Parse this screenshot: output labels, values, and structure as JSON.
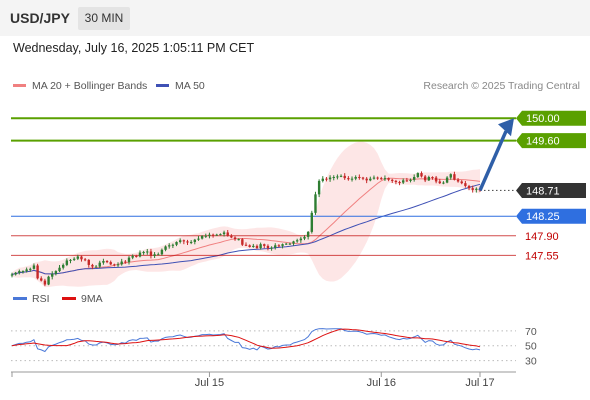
{
  "header": {
    "symbol": "USD/JPY",
    "timeframe": "30 MIN"
  },
  "datetime": "Wednesday, July 16, 2025 1:05:11 PM CET",
  "legend": {
    "ma20_label": "MA 20 + Bollinger Bands",
    "ma50_label": "MA 50",
    "credit": "Research © 2025 Trading Central"
  },
  "colors": {
    "bull": "#2e7d32",
    "bear": "#c62828",
    "ma20": "#f08080",
    "band_fill": "#fde2e2",
    "ma50": "#3f51b5",
    "target": "#5aa000",
    "current": "#333333",
    "pivot": "#2f6fe0",
    "support": "#c00000",
    "arrow": "#2f5fa8",
    "rsi": "#4a78d8",
    "rsi_ma": "#dd1111"
  },
  "chart_data": [
    {
      "type": "candlestick",
      "title": "",
      "price_axis_range": [
        147.2,
        150.2
      ],
      "x_labels": [
        "Jul 15",
        "Jul 16",
        "Jul 17"
      ],
      "levels": [
        {
          "value": 150.0,
          "label": "150.00",
          "kind": "target"
        },
        {
          "value": 149.6,
          "label": "149.60",
          "kind": "target"
        },
        {
          "value": 148.71,
          "label": "148.71",
          "kind": "current"
        },
        {
          "value": 148.25,
          "label": "148.25",
          "kind": "pivot"
        },
        {
          "value": 147.9,
          "label": "147.90",
          "kind": "support"
        },
        {
          "value": 147.55,
          "label": "147.55",
          "kind": "support"
        }
      ],
      "series": [
        {
          "name": "MA 20 + Bollinger Bands"
        },
        {
          "name": "MA 50"
        }
      ],
      "close": [
        147.21,
        147.24,
        147.27,
        147.27,
        147.3,
        147.31,
        147.37,
        147.14,
        147.1,
        147.03,
        147.17,
        147.22,
        147.27,
        147.33,
        147.38,
        147.46,
        147.47,
        147.49,
        147.53,
        147.48,
        147.47,
        147.38,
        147.35,
        147.35,
        147.42,
        147.45,
        147.43,
        147.39,
        147.38,
        147.39,
        147.44,
        147.43,
        147.51,
        147.54,
        147.53,
        147.6,
        147.61,
        147.62,
        147.54,
        147.57,
        147.57,
        147.65,
        147.71,
        147.73,
        147.74,
        147.79,
        147.82,
        147.8,
        147.78,
        147.79,
        147.83,
        147.85,
        147.9,
        147.9,
        147.92,
        147.91,
        147.92,
        147.93,
        147.96,
        147.9,
        147.87,
        147.84,
        147.84,
        147.74,
        147.73,
        147.7,
        147.72,
        147.68,
        147.75,
        147.72,
        147.68,
        147.69,
        147.73,
        147.72,
        147.75,
        147.76,
        147.76,
        147.8,
        147.82,
        147.85,
        147.88,
        147.97,
        148.31,
        148.64,
        148.88,
        148.92,
        148.91,
        148.94,
        148.95,
        148.96,
        148.97,
        148.93,
        148.91,
        148.92,
        148.95,
        148.94,
        148.92,
        148.89,
        148.92,
        148.94,
        148.93,
        148.91,
        148.93,
        148.9,
        148.88,
        148.86,
        148.85,
        148.89,
        148.88,
        148.9,
        148.95,
        149.02,
        148.96,
        148.89,
        148.95,
        148.94,
        148.87,
        148.84,
        148.85,
        148.94,
        149.0,
        148.9,
        148.87,
        148.84,
        148.79,
        148.75,
        148.72,
        148.74,
        148.71
      ],
      "rsi_axis": [
        30,
        50,
        70
      ]
    }
  ]
}
